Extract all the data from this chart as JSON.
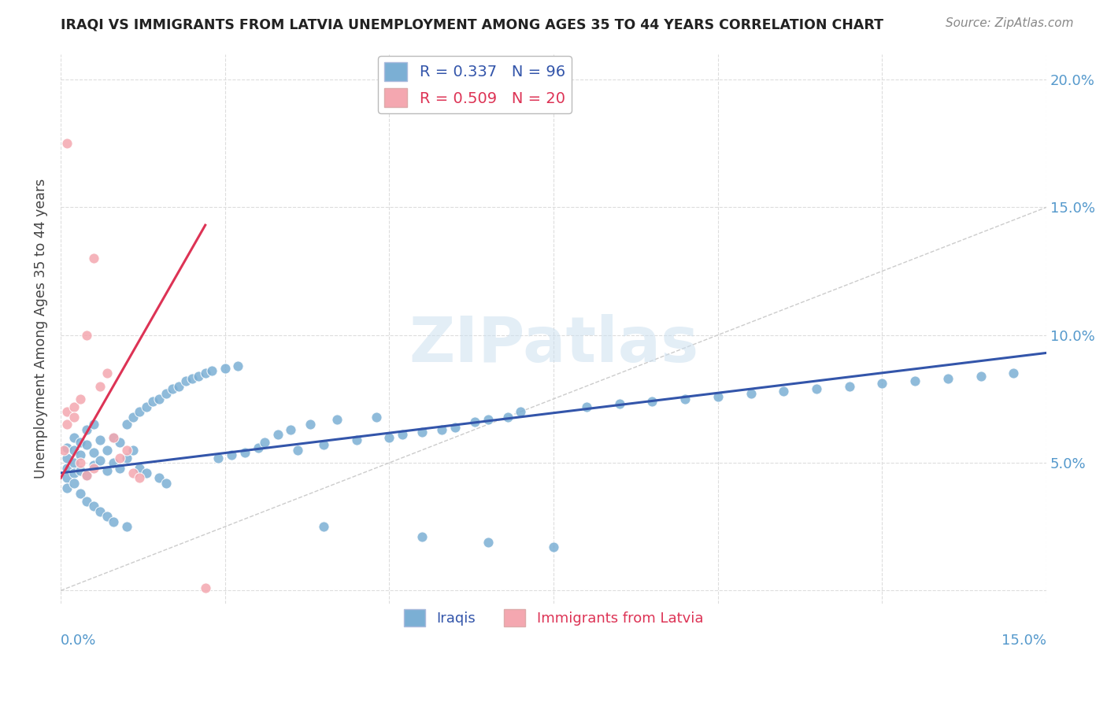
{
  "title": "IRAQI VS IMMIGRANTS FROM LATVIA UNEMPLOYMENT AMONG AGES 35 TO 44 YEARS CORRELATION CHART",
  "source": "Source: ZipAtlas.com",
  "ylabel": "Unemployment Among Ages 35 to 44 years",
  "xlim": [
    0,
    0.15
  ],
  "ylim": [
    -0.005,
    0.21
  ],
  "iraqis_color": "#7bafd4",
  "iraqis_color_edge": "#5588bb",
  "latvia_color": "#f4a7b0",
  "latvia_color_edge": "#e07080",
  "iraqis_line_color": "#3355aa",
  "latvia_line_color": "#dd3355",
  "diagonal_color": "#cccccc",
  "iraqi_line_x": [
    0.0,
    0.15
  ],
  "iraqi_line_y": [
    0.046,
    0.093
  ],
  "latvia_line_x": [
    0.0,
    0.022
  ],
  "latvia_line_y": [
    0.044,
    0.143
  ],
  "iraqi_x": [
    0.001,
    0.001,
    0.001,
    0.001,
    0.001,
    0.002,
    0.002,
    0.002,
    0.002,
    0.002,
    0.003,
    0.003,
    0.003,
    0.003,
    0.004,
    0.004,
    0.004,
    0.004,
    0.005,
    0.005,
    0.005,
    0.005,
    0.006,
    0.006,
    0.006,
    0.007,
    0.007,
    0.007,
    0.008,
    0.008,
    0.008,
    0.009,
    0.009,
    0.01,
    0.01,
    0.01,
    0.011,
    0.011,
    0.012,
    0.012,
    0.013,
    0.013,
    0.014,
    0.015,
    0.015,
    0.016,
    0.016,
    0.017,
    0.018,
    0.019,
    0.02,
    0.021,
    0.022,
    0.023,
    0.024,
    0.025,
    0.026,
    0.027,
    0.028,
    0.03,
    0.031,
    0.033,
    0.035,
    0.036,
    0.038,
    0.04,
    0.042,
    0.045,
    0.048,
    0.05,
    0.052,
    0.055,
    0.058,
    0.06,
    0.063,
    0.065,
    0.068,
    0.07,
    0.08,
    0.085,
    0.09,
    0.095,
    0.1,
    0.105,
    0.11,
    0.115,
    0.12,
    0.125,
    0.13,
    0.135,
    0.14,
    0.145,
    0.04,
    0.055,
    0.065,
    0.075
  ],
  "iraqi_y": [
    0.048,
    0.052,
    0.044,
    0.056,
    0.04,
    0.05,
    0.055,
    0.046,
    0.06,
    0.042,
    0.053,
    0.047,
    0.058,
    0.038,
    0.057,
    0.045,
    0.063,
    0.035,
    0.054,
    0.049,
    0.065,
    0.033,
    0.051,
    0.059,
    0.031,
    0.055,
    0.047,
    0.029,
    0.06,
    0.05,
    0.027,
    0.058,
    0.048,
    0.065,
    0.052,
    0.025,
    0.068,
    0.055,
    0.07,
    0.048,
    0.072,
    0.046,
    0.074,
    0.075,
    0.044,
    0.077,
    0.042,
    0.079,
    0.08,
    0.082,
    0.083,
    0.084,
    0.085,
    0.086,
    0.052,
    0.087,
    0.053,
    0.088,
    0.054,
    0.056,
    0.058,
    0.061,
    0.063,
    0.055,
    0.065,
    0.057,
    0.067,
    0.059,
    0.068,
    0.06,
    0.061,
    0.062,
    0.063,
    0.064,
    0.066,
    0.067,
    0.068,
    0.07,
    0.072,
    0.073,
    0.074,
    0.075,
    0.076,
    0.077,
    0.078,
    0.079,
    0.08,
    0.081,
    0.082,
    0.083,
    0.084,
    0.085,
    0.025,
    0.021,
    0.019,
    0.017
  ],
  "latvia_x": [
    0.0005,
    0.001,
    0.001,
    0.001,
    0.002,
    0.002,
    0.003,
    0.003,
    0.004,
    0.004,
    0.005,
    0.005,
    0.006,
    0.007,
    0.008,
    0.009,
    0.01,
    0.011,
    0.012,
    0.022
  ],
  "latvia_y": [
    0.055,
    0.175,
    0.065,
    0.07,
    0.072,
    0.068,
    0.075,
    0.05,
    0.1,
    0.045,
    0.13,
    0.048,
    0.08,
    0.085,
    0.06,
    0.052,
    0.055,
    0.046,
    0.044,
    0.001
  ]
}
